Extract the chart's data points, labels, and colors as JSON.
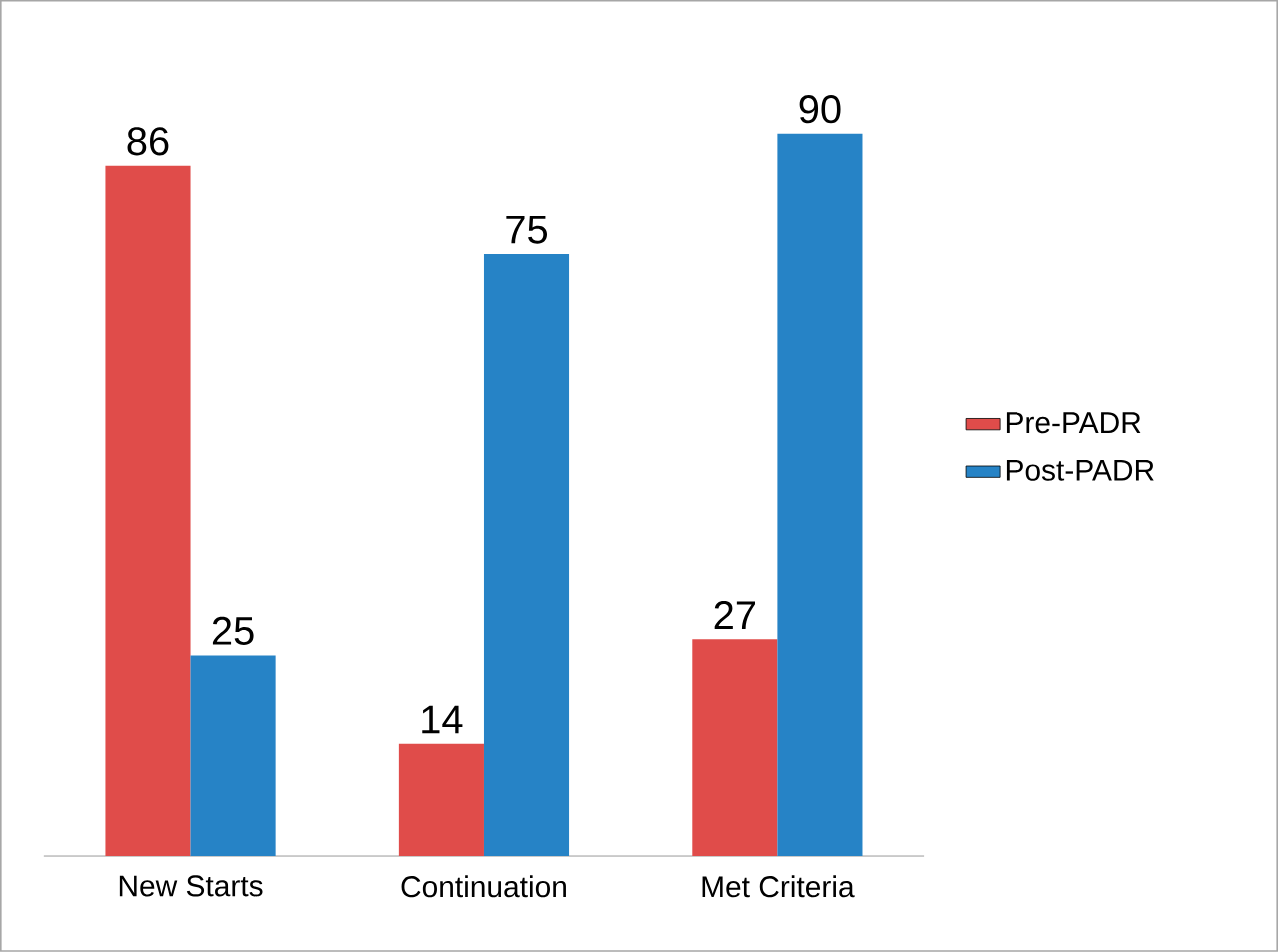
{
  "chart_data": {
    "type": "bar",
    "categories": [
      "New Starts",
      "Continuation",
      "Met Criteria"
    ],
    "series": [
      {
        "name": "Pre-PADR",
        "color": "#e04c4a",
        "values": [
          86,
          14,
          27
        ]
      },
      {
        "name": "Post-PADR",
        "color": "#2683c6",
        "values": [
          25,
          75,
          90
        ]
      }
    ],
    "data_labels": true,
    "legend": "right"
  }
}
